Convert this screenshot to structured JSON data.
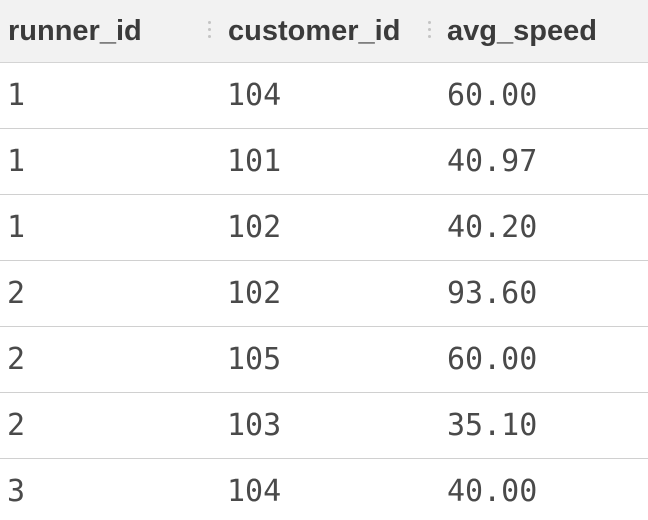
{
  "table": {
    "columns": [
      "runner_id",
      "customer_id",
      "avg_speed"
    ],
    "rows": [
      [
        "1",
        "104",
        "60.00"
      ],
      [
        "1",
        "101",
        "40.97"
      ],
      [
        "1",
        "102",
        "40.20"
      ],
      [
        "2",
        "102",
        "93.60"
      ],
      [
        "2",
        "105",
        "60.00"
      ],
      [
        "2",
        "103",
        "35.10"
      ],
      [
        "3",
        "104",
        "40.00"
      ]
    ]
  }
}
